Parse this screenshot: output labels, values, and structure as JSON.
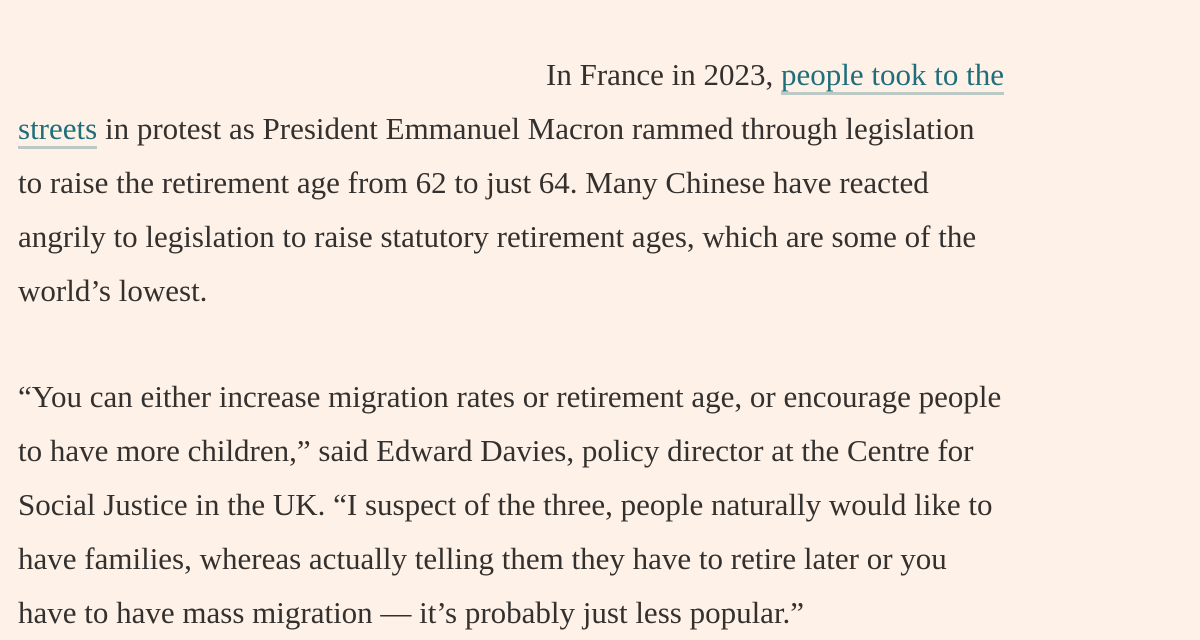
{
  "article": {
    "paragraph1": {
      "lead": "In France in 2023, ",
      "link_part1": "people took to the",
      "link_part2": "streets",
      "line2_rest": " in protest as President Emmanuel Macron rammed through legislation",
      "line3": "to raise the retirement age from 62 to just 64. Many Chinese have reacted",
      "line4": "angrily to legislation to raise statutory retirement ages, which are some of the",
      "line5": "world’s lowest."
    },
    "paragraph2": {
      "line1": "“You can either increase migration rates or retirement age, or encourage people",
      "line2": "to have more children,” said Edward Davies, policy director at the Centre for",
      "line3": "Social Justice in the UK. “I suspect of the three, people naturally would like to",
      "line4": "have families, whereas actually telling them they have to retire later or you",
      "line5": "have to have mass migration — it’s probably just less popular.”"
    },
    "colors": {
      "background": "#fdf1e8",
      "text": "#33302e",
      "link": "#1f6e7a",
      "link_underline": "#bcc9c5"
    }
  }
}
